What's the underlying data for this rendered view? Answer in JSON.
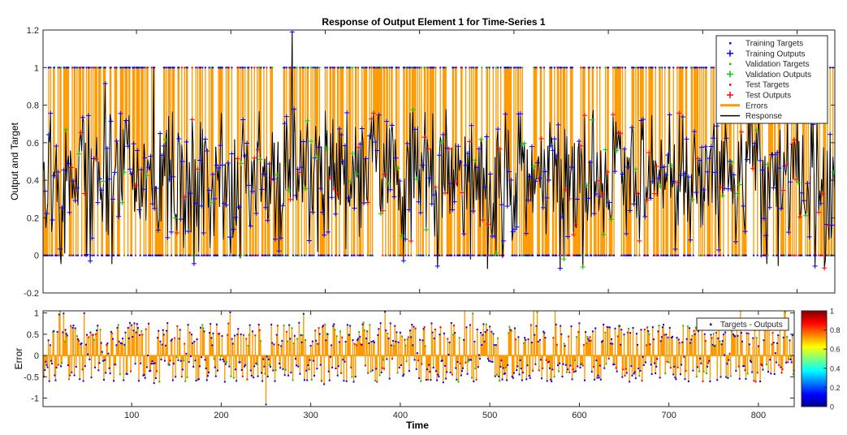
{
  "chart_data": [
    {
      "type": "line",
      "title": "Response of Output Element 1 for Time-Series 1",
      "xlabel": "",
      "ylabel": "Output and Target",
      "xlim": [
        1,
        840
      ],
      "ylim": [
        -0.2,
        1.2
      ],
      "yticks": [
        "-0.2",
        "0",
        "0.2",
        "0.4",
        "0.6",
        "0.8",
        "1",
        "1.2"
      ],
      "grid": false,
      "legend_position": "top-right",
      "n_points": 840,
      "seed": 1337,
      "legend": [
        {
          "label": "Training Targets",
          "marker": "dot",
          "color": "#0000ff"
        },
        {
          "label": "Training Outputs",
          "marker": "plus",
          "color": "#0000ff"
        },
        {
          "label": "Validation Targets",
          "marker": "dot",
          "color": "#00cc00"
        },
        {
          "label": "Validation Outputs",
          "marker": "plus",
          "color": "#00cc00"
        },
        {
          "label": "Test Targets",
          "marker": "dot",
          "color": "#ff0000"
        },
        {
          "label": "Test Outputs",
          "marker": "plus",
          "color": "#ff0000"
        },
        {
          "label": "Errors",
          "marker": "line",
          "color": "#ff9900"
        },
        {
          "label": "Response",
          "marker": "line",
          "color": "#000000"
        }
      ],
      "series": [
        {
          "name": "Training Targets",
          "color": "#0000ff",
          "values_description": "binary 0/1"
        },
        {
          "name": "Training Outputs",
          "color": "#0000ff"
        },
        {
          "name": "Validation Targets",
          "color": "#00cc00"
        },
        {
          "name": "Validation Outputs",
          "color": "#00cc00"
        },
        {
          "name": "Test Targets",
          "color": "#ff0000"
        },
        {
          "name": "Test Outputs",
          "color": "#ff0000"
        },
        {
          "name": "Errors",
          "color": "#ff9900"
        },
        {
          "name": "Response",
          "color": "#000000"
        }
      ]
    },
    {
      "type": "bar",
      "title": "",
      "xlabel": "Time",
      "ylabel": "Error",
      "xlim": [
        1,
        840
      ],
      "ylim": [
        -1.2,
        1.05
      ],
      "xticks": [
        "100",
        "200",
        "300",
        "400",
        "500",
        "600",
        "700",
        "800"
      ],
      "yticks": [
        "-1",
        "-0.5",
        "0",
        "0.5",
        "1"
      ],
      "legend": [
        {
          "label": "Targets - Outputs",
          "marker": "dot",
          "color": "#0000ff"
        }
      ],
      "legend_position": "top-right",
      "bar_color": "#ff9900",
      "colorbar": {
        "ticks": [
          "0",
          "0.2",
          "0.4",
          "0.6",
          "0.8",
          "1"
        ],
        "colormap": "jet"
      }
    }
  ]
}
